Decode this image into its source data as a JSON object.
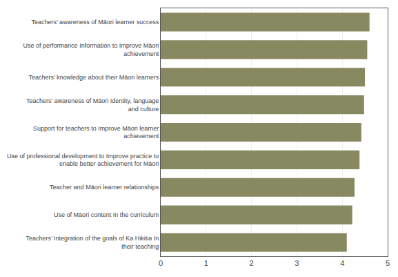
{
  "chart_data": {
    "type": "bar",
    "orientation": "horizontal",
    "categories": [
      "Teachers’ Integration of the goals of Ka Hikitia In\ntheir teaching",
      "Use of Māori content In the curriculum",
      "Teacher and Māori learner relationships",
      "Use of professional development to Improve practice to\nenable better achievement for Māori",
      "Support for teachers to Improve Māori learner\nachievement",
      "Teachers’ awareness of Māori Identity, language\nand culture",
      "Teachers’ knowledge about their Māori learners",
      "Use of performance Information to Improve Māori\nachievement",
      "Teachers’ awareness of Māori learner success"
    ],
    "values": [
      4.1,
      4.22,
      4.27,
      4.38,
      4.42,
      4.48,
      4.5,
      4.55,
      4.6
    ],
    "color": "#878960",
    "xlim": [
      0,
      5
    ],
    "xticks": [
      0,
      1,
      2,
      3,
      4,
      5
    ],
    "grid": true
  }
}
